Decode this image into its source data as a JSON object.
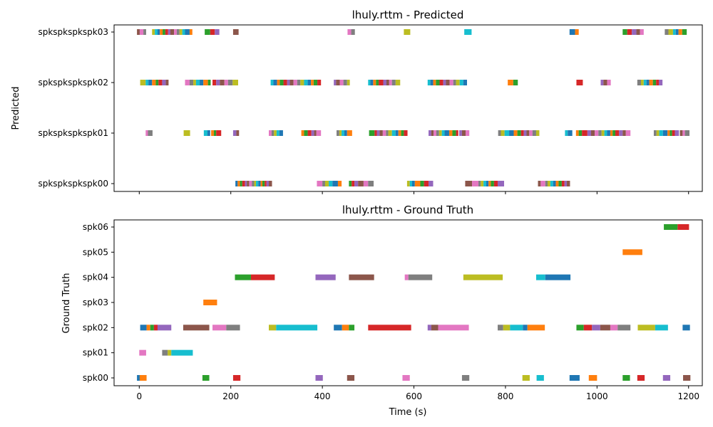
{
  "palette": [
    "#1f77b4",
    "#ff7f0e",
    "#2ca02c",
    "#d62728",
    "#9467bd",
    "#8c564b",
    "#e377c2",
    "#7f7f7f",
    "#bcbd22",
    "#17becf"
  ],
  "chart_data": [
    {
      "type": "broken_barh",
      "title": "lhuly.rttm - Predicted",
      "ylabel": "Predicted",
      "xlabel": "",
      "xlim": [
        -55,
        1230
      ],
      "x_ticks": [
        0,
        200,
        400,
        600,
        800,
        1000,
        1200
      ],
      "show_x_tick_labels": false,
      "speakers": [
        "spkspkspkspk00",
        "spkspkspkspk01",
        "spkspkspkspk02",
        "spkspkspkspk03"
      ],
      "segments": [
        [
          [
            210,
            5
          ],
          [
            215,
            5
          ],
          [
            220,
            5
          ],
          [
            225,
            6
          ],
          [
            231,
            4
          ],
          [
            235,
            5
          ],
          [
            240,
            6
          ],
          [
            246,
            5
          ],
          [
            251,
            4
          ],
          [
            255,
            5
          ],
          [
            260,
            5
          ],
          [
            265,
            4
          ],
          [
            269,
            5
          ],
          [
            274,
            4
          ],
          [
            278,
            5
          ],
          [
            283,
            7
          ],
          [
            388,
            12
          ],
          [
            400,
            6
          ],
          [
            406,
            8
          ],
          [
            414,
            8
          ],
          [
            422,
            12
          ],
          [
            434,
            8
          ],
          [
            458,
            6
          ],
          [
            464,
            6
          ],
          [
            470,
            8
          ],
          [
            478,
            12
          ],
          [
            490,
            10
          ],
          [
            500,
            12
          ],
          [
            585,
            6
          ],
          [
            591,
            5
          ],
          [
            596,
            6
          ],
          [
            602,
            12
          ],
          [
            614,
            8
          ],
          [
            622,
            10
          ],
          [
            632,
            10
          ],
          [
            712,
            15
          ],
          [
            727,
            14
          ],
          [
            741,
            5
          ],
          [
            746,
            6
          ],
          [
            752,
            6
          ],
          [
            758,
            5
          ],
          [
            763,
            5
          ],
          [
            768,
            7
          ],
          [
            775,
            8
          ],
          [
            783,
            14
          ],
          [
            871,
            6
          ],
          [
            877,
            10
          ],
          [
            887,
            5
          ],
          [
            892,
            6
          ],
          [
            898,
            6
          ],
          [
            904,
            6
          ],
          [
            910,
            6
          ],
          [
            916,
            7
          ],
          [
            923,
            6
          ],
          [
            929,
            5
          ],
          [
            934,
            7
          ]
        ],
        [
          [
            14,
            5
          ],
          [
            19,
            10
          ],
          [
            97,
            14
          ],
          [
            141,
            8
          ],
          [
            149,
            6
          ],
          [
            157,
            6
          ],
          [
            163,
            5
          ],
          [
            168,
            11
          ],
          [
            205,
            7
          ],
          [
            212,
            6
          ],
          [
            283,
            6
          ],
          [
            289,
            5
          ],
          [
            294,
            6
          ],
          [
            300,
            6
          ],
          [
            306,
            8
          ],
          [
            354,
            6
          ],
          [
            360,
            8
          ],
          [
            368,
            8
          ],
          [
            376,
            6
          ],
          [
            382,
            5
          ],
          [
            387,
            10
          ],
          [
            431,
            6
          ],
          [
            437,
            5
          ],
          [
            442,
            6
          ],
          [
            448,
            6
          ],
          [
            454,
            11
          ],
          [
            502,
            12
          ],
          [
            514,
            5
          ],
          [
            519,
            6
          ],
          [
            525,
            7
          ],
          [
            532,
            7
          ],
          [
            539,
            5
          ],
          [
            544,
            8
          ],
          [
            552,
            8
          ],
          [
            560,
            6
          ],
          [
            566,
            6
          ],
          [
            572,
            6
          ],
          [
            578,
            8
          ],
          [
            632,
            6
          ],
          [
            638,
            5
          ],
          [
            643,
            6
          ],
          [
            649,
            6
          ],
          [
            655,
            6
          ],
          [
            661,
            6
          ],
          [
            667,
            10
          ],
          [
            677,
            7
          ],
          [
            684,
            8
          ],
          [
            692,
            5
          ],
          [
            699,
            6
          ],
          [
            705,
            8
          ],
          [
            713,
            8
          ],
          [
            784,
            6
          ],
          [
            790,
            8
          ],
          [
            798,
            10
          ],
          [
            808,
            10
          ],
          [
            818,
            8
          ],
          [
            826,
            8
          ],
          [
            834,
            6
          ],
          [
            840,
            6
          ],
          [
            846,
            6
          ],
          [
            852,
            7
          ],
          [
            859,
            8
          ],
          [
            867,
            7
          ],
          [
            930,
            6
          ],
          [
            936,
            10
          ],
          [
            954,
            6
          ],
          [
            960,
            7
          ],
          [
            967,
            12
          ],
          [
            979,
            8
          ],
          [
            987,
            8
          ],
          [
            995,
            8
          ],
          [
            1003,
            7
          ],
          [
            1010,
            6
          ],
          [
            1016,
            6
          ],
          [
            1022,
            7
          ],
          [
            1029,
            5
          ],
          [
            1034,
            6
          ],
          [
            1040,
            8
          ],
          [
            1048,
            8
          ],
          [
            1056,
            7
          ],
          [
            1063,
            10
          ],
          [
            1124,
            6
          ],
          [
            1130,
            6
          ],
          [
            1136,
            8
          ],
          [
            1144,
            10
          ],
          [
            1154,
            5
          ],
          [
            1159,
            5
          ],
          [
            1164,
            6
          ],
          [
            1170,
            9
          ],
          [
            1181,
            6
          ],
          [
            1187,
            5
          ],
          [
            1192,
            10
          ]
        ],
        [
          [
            2,
            12
          ],
          [
            14,
            6
          ],
          [
            20,
            8
          ],
          [
            28,
            8
          ],
          [
            36,
            6
          ],
          [
            42,
            8
          ],
          [
            50,
            8
          ],
          [
            58,
            6
          ],
          [
            100,
            10
          ],
          [
            110,
            8
          ],
          [
            118,
            6
          ],
          [
            124,
            8
          ],
          [
            132,
            8
          ],
          [
            140,
            10
          ],
          [
            150,
            6
          ],
          [
            160,
            8
          ],
          [
            168,
            8
          ],
          [
            176,
            10
          ],
          [
            186,
            8
          ],
          [
            194,
            10
          ],
          [
            204,
            12
          ],
          [
            287,
            6
          ],
          [
            293,
            8
          ],
          [
            301,
            6
          ],
          [
            307,
            8
          ],
          [
            315,
            8
          ],
          [
            323,
            6
          ],
          [
            329,
            8
          ],
          [
            337,
            8
          ],
          [
            345,
            7
          ],
          [
            352,
            8
          ],
          [
            360,
            8
          ],
          [
            368,
            7
          ],
          [
            375,
            6
          ],
          [
            381,
            8
          ],
          [
            389,
            8
          ],
          [
            425,
            5
          ],
          [
            430,
            8
          ],
          [
            438,
            8
          ],
          [
            446,
            8
          ],
          [
            454,
            6
          ],
          [
            500,
            5
          ],
          [
            505,
            6
          ],
          [
            511,
            6
          ],
          [
            517,
            6
          ],
          [
            523,
            10
          ],
          [
            533,
            7
          ],
          [
            540,
            6
          ],
          [
            546,
            6
          ],
          [
            552,
            8
          ],
          [
            560,
            10
          ],
          [
            630,
            6
          ],
          [
            636,
            6
          ],
          [
            642,
            6
          ],
          [
            648,
            8
          ],
          [
            656,
            8
          ],
          [
            664,
            6
          ],
          [
            670,
            8
          ],
          [
            678,
            8
          ],
          [
            686,
            6
          ],
          [
            692,
            8
          ],
          [
            700,
            8
          ],
          [
            708,
            8
          ],
          [
            805,
            12
          ],
          [
            817,
            10
          ],
          [
            955,
            14
          ],
          [
            1008,
            6
          ],
          [
            1014,
            8
          ],
          [
            1022,
            8
          ],
          [
            1088,
            8
          ],
          [
            1096,
            6
          ],
          [
            1102,
            6
          ],
          [
            1108,
            6
          ],
          [
            1114,
            8
          ],
          [
            1122,
            7
          ],
          [
            1129,
            6
          ],
          [
            1135,
            8
          ]
        ],
        [
          [
            -5,
            6
          ],
          [
            1,
            8
          ],
          [
            9,
            6
          ],
          [
            28,
            6
          ],
          [
            34,
            6
          ],
          [
            40,
            5
          ],
          [
            45,
            6
          ],
          [
            51,
            6
          ],
          [
            57,
            6
          ],
          [
            63,
            5
          ],
          [
            68,
            8
          ],
          [
            76,
            6
          ],
          [
            82,
            6
          ],
          [
            88,
            6
          ],
          [
            94,
            6
          ],
          [
            100,
            10
          ],
          [
            110,
            6
          ],
          [
            143,
            12
          ],
          [
            155,
            10
          ],
          [
            165,
            10
          ],
          [
            205,
            12
          ],
          [
            455,
            8
          ],
          [
            463,
            8
          ],
          [
            578,
            14
          ],
          [
            710,
            16
          ],
          [
            940,
            12
          ],
          [
            952,
            8
          ],
          [
            1056,
            10
          ],
          [
            1066,
            10
          ],
          [
            1076,
            10
          ],
          [
            1086,
            8
          ],
          [
            1094,
            8
          ],
          [
            1148,
            8
          ],
          [
            1156,
            10
          ],
          [
            1166,
            6
          ],
          [
            1172,
            6
          ],
          [
            1178,
            8
          ],
          [
            1186,
            10
          ]
        ]
      ]
    },
    {
      "type": "broken_barh",
      "title": "lhuly.rttm - Ground Truth",
      "ylabel": "Ground Truth",
      "xlabel": "Time (s)",
      "xlim": [
        -55,
        1230
      ],
      "x_ticks": [
        0,
        200,
        400,
        600,
        800,
        1000,
        1200
      ],
      "x_tick_labels": [
        "0",
        "200",
        "400",
        "600",
        "800",
        "1000",
        "1200"
      ],
      "speakers": [
        "spk00",
        "spk01",
        "spk02",
        "spk03",
        "spk04",
        "spk05",
        "spk06"
      ],
      "segments": [
        [
          [
            -5,
            6
          ],
          [
            1,
            15
          ],
          [
            138,
            15
          ],
          [
            205,
            16
          ],
          [
            385,
            16
          ],
          [
            454,
            16
          ],
          [
            575,
            16
          ],
          [
            705,
            16
          ],
          [
            837,
            16
          ],
          [
            868,
            16
          ],
          [
            940,
            22
          ],
          [
            982,
            18
          ],
          [
            1056,
            16
          ],
          [
            1088,
            16
          ],
          [
            1144,
            16
          ],
          [
            1188,
            16
          ]
        ],
        [
          [
            0,
            15
          ],
          [
            50,
            12
          ],
          [
            62,
            8
          ],
          [
            70,
            47
          ]
        ],
        [
          [
            2,
            14
          ],
          [
            16,
            8
          ],
          [
            24,
            8
          ],
          [
            32,
            8
          ],
          [
            40,
            30
          ],
          [
            96,
            57
          ],
          [
            160,
            30
          ],
          [
            190,
            30
          ],
          [
            283,
            16
          ],
          [
            299,
            90
          ],
          [
            425,
            18
          ],
          [
            443,
            15
          ],
          [
            458,
            12
          ],
          [
            500,
            94
          ],
          [
            630,
            8
          ],
          [
            638,
            15
          ],
          [
            653,
            67
          ],
          [
            783,
            12
          ],
          [
            795,
            15
          ],
          [
            810,
            28
          ],
          [
            838,
            10
          ],
          [
            848,
            38
          ],
          [
            955,
            16
          ],
          [
            971,
            18
          ],
          [
            989,
            18
          ],
          [
            1007,
            22
          ],
          [
            1029,
            16
          ],
          [
            1045,
            28
          ],
          [
            1089,
            38
          ],
          [
            1127,
            28
          ],
          [
            1187,
            16
          ]
        ],
        [
          [
            140,
            30
          ]
        ],
        [
          [
            209,
            35
          ],
          [
            244,
            52
          ],
          [
            385,
            44
          ],
          [
            458,
            55
          ],
          [
            580,
            8
          ],
          [
            588,
            52
          ],
          [
            708,
            86
          ],
          [
            867,
            20
          ],
          [
            887,
            55
          ]
        ],
        [
          [
            1056,
            43
          ]
        ],
        [
          [
            1146,
            30
          ],
          [
            1176,
            25
          ]
        ]
      ]
    }
  ]
}
